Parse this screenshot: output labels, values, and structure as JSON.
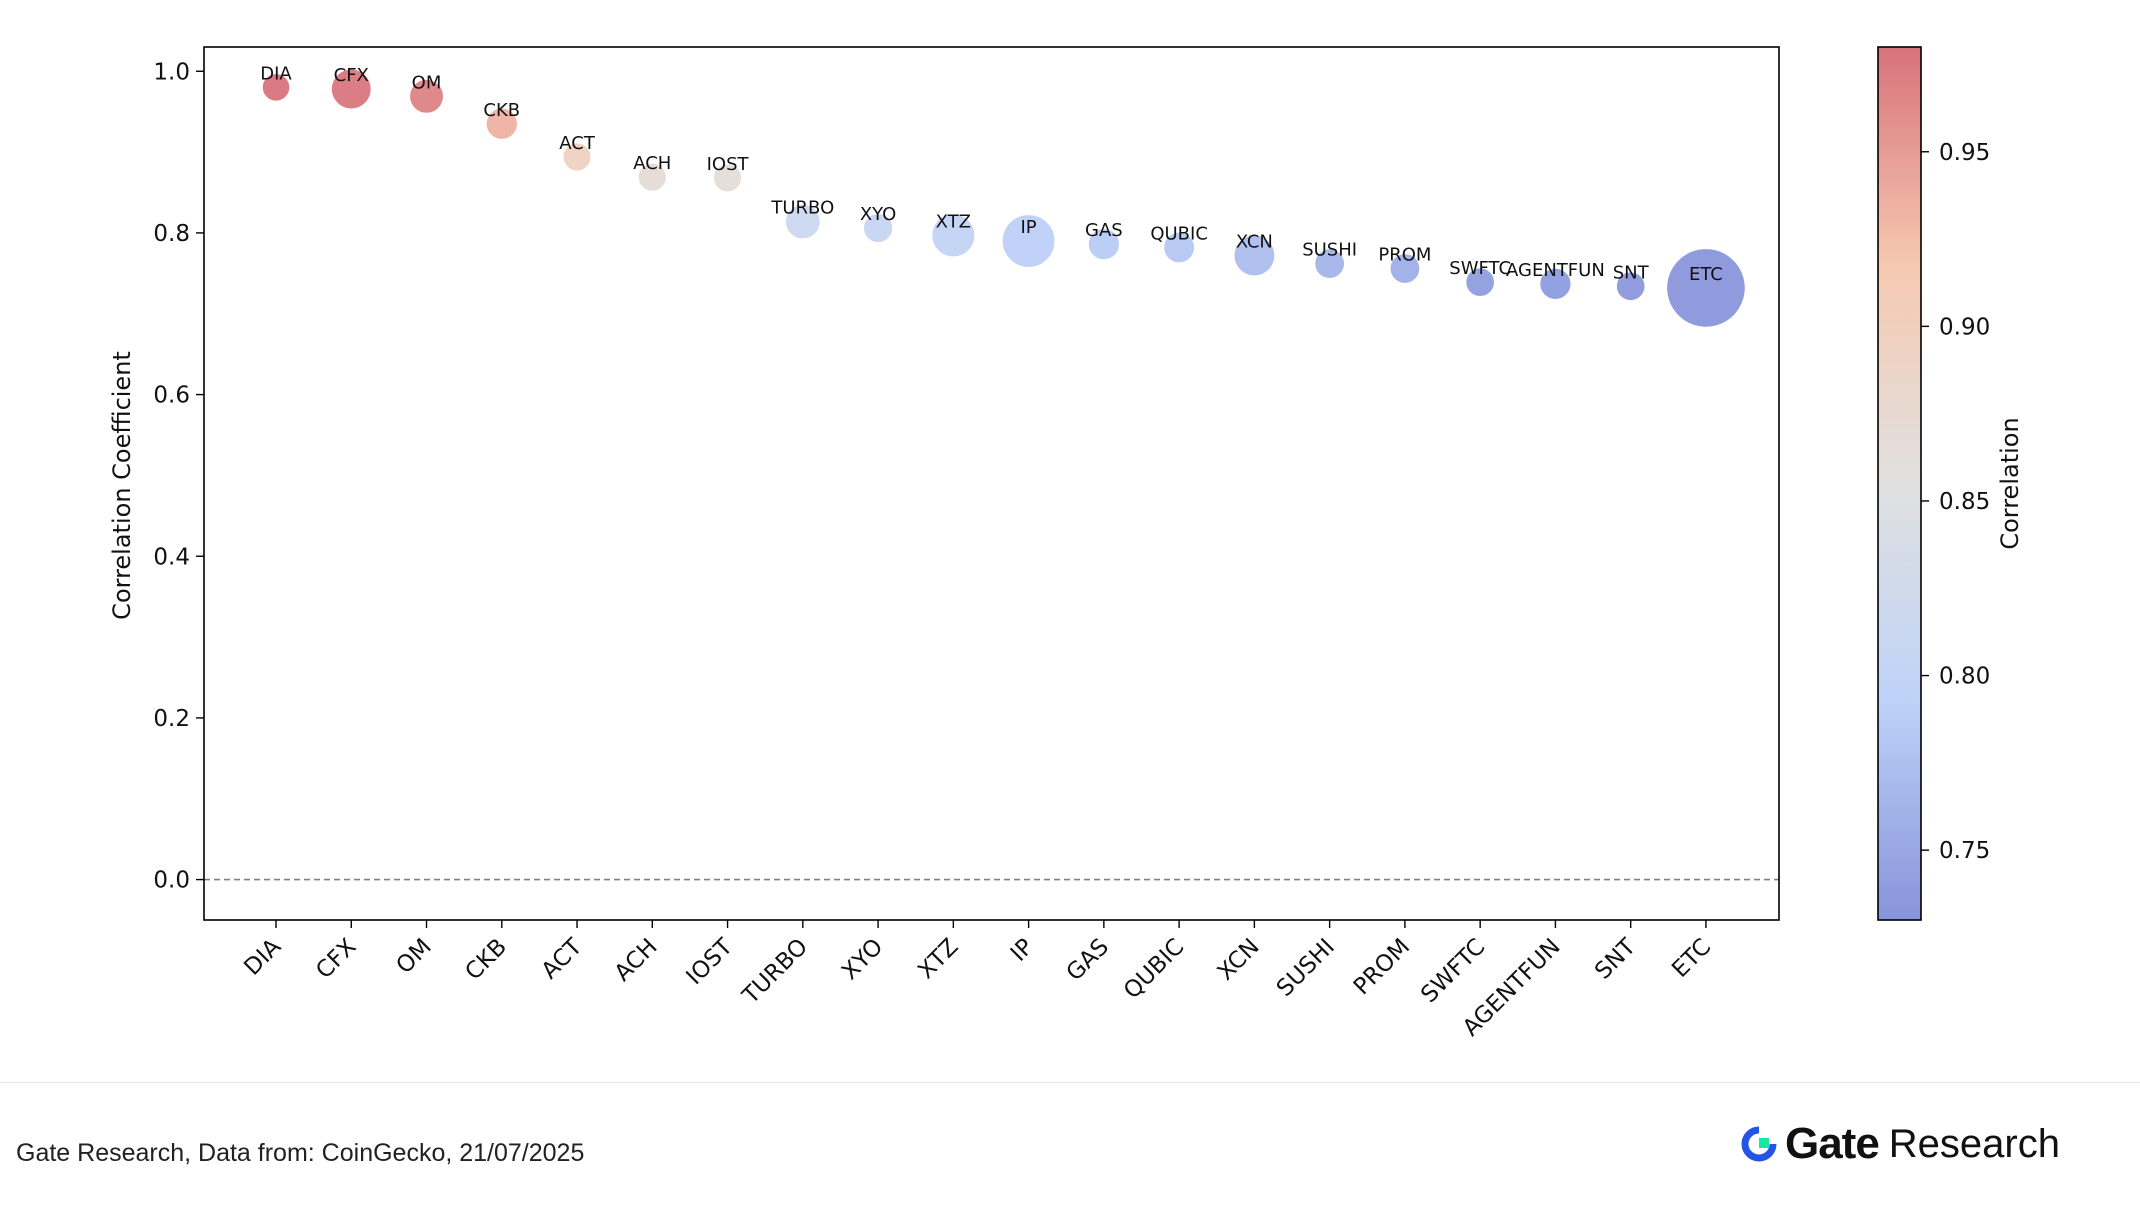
{
  "chart_data": {
    "type": "scatter",
    "subtype": "bubble",
    "title": "",
    "xlabel": "",
    "ylabel": "Correlation Coefficient",
    "ylim": [
      -0.05,
      1.03
    ],
    "yticks": [
      "0.0",
      "0.2",
      "0.4",
      "0.6",
      "0.8",
      "1.0"
    ],
    "yticks_values": [
      0.0,
      0.2,
      0.4,
      0.6,
      0.8,
      1.0
    ],
    "reference_line": {
      "y": 0.0,
      "style": "dashed",
      "color": "#808080"
    },
    "grid": false,
    "legend": "none",
    "colorbar": {
      "label": "Correlation",
      "range": [
        0.73,
        0.98
      ],
      "ticks": [
        "0.75",
        "0.80",
        "0.85",
        "0.90",
        "0.95"
      ],
      "ticks_values": [
        0.75,
        0.8,
        0.85,
        0.9,
        0.95
      ],
      "colormap": "coolwarm",
      "colors": [
        "#7a88d6",
        "#b7cdf7",
        "#dddddd",
        "#f5c3a8",
        "#d4636d"
      ]
    },
    "categories": [
      "DIA",
      "CFX",
      "OM",
      "CKB",
      "ACT",
      "ACH",
      "IOST",
      "TURBO",
      "XYO",
      "XTZ",
      "IP",
      "GAS",
      "QUBIC",
      "XCN",
      "SUSHI",
      "PROM",
      "SWFTC",
      "AGENTFUN",
      "SNT",
      "ETC"
    ],
    "values": [
      0.98,
      0.978,
      0.969,
      0.935,
      0.894,
      0.869,
      0.868,
      0.814,
      0.806,
      0.797,
      0.79,
      0.786,
      0.782,
      0.772,
      0.762,
      0.756,
      0.739,
      0.737,
      0.734,
      0.732
    ],
    "bubble_size": [
      1.3,
      4.2,
      2.6,
      2.0,
      1.4,
      1.4,
      1.4,
      2.8,
      1.6,
      5.2,
      9.0,
      2.0,
      1.9,
      4.5,
      1.7,
      1.7,
      1.5,
      2.0,
      1.5,
      24.0
    ]
  },
  "footer": {
    "source": "Gate Research, Data from: CoinGecko, 21/07/2025",
    "brand_name": "Gate",
    "brand_sub": "Research",
    "brand_color": "#2354e6",
    "brand_accent": "#17e7a6"
  }
}
